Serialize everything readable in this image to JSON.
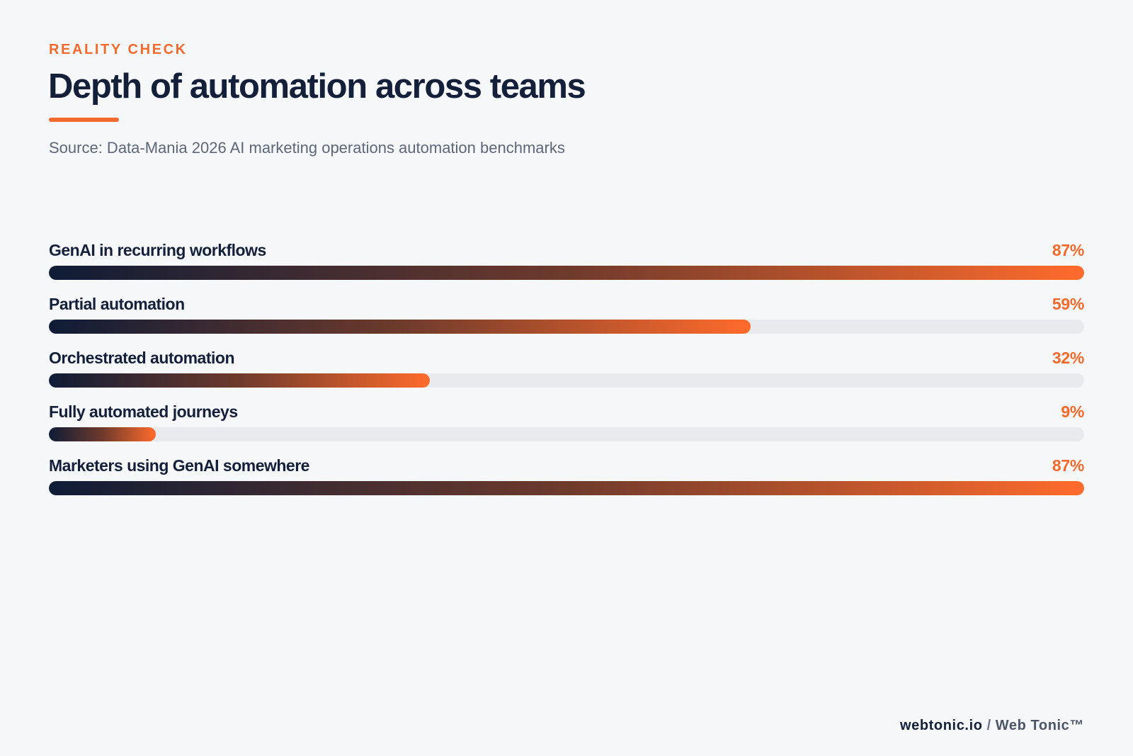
{
  "header": {
    "eyebrow": "REALITY CHECK",
    "title": "Depth of automation across teams",
    "source": "Source: Data-Mania 2026 AI marketing operations automation benchmarks"
  },
  "chart_data": {
    "type": "bar",
    "orientation": "horizontal",
    "title": "Depth of automation across teams",
    "categories": [
      "GenAI in recurring workflows",
      "Partial automation",
      "Orchestrated automation",
      "Fully automated journeys",
      "Marketers using GenAI somewhere"
    ],
    "values": [
      87,
      59,
      32,
      9,
      87
    ],
    "value_labels": [
      "87%",
      "59%",
      "32%",
      "9%",
      "87%"
    ],
    "unit": "%",
    "xlim": [
      0,
      87
    ],
    "grid": false,
    "legend": "none",
    "colors": {
      "gradient_start": "#0f1c36",
      "gradient_end": "#ff6b2c",
      "track": "#e8eaee",
      "value_text": "#f26a2e"
    }
  },
  "footer": {
    "site": "webtonic.io",
    "separator": "/",
    "brand": "Web Tonic™"
  }
}
